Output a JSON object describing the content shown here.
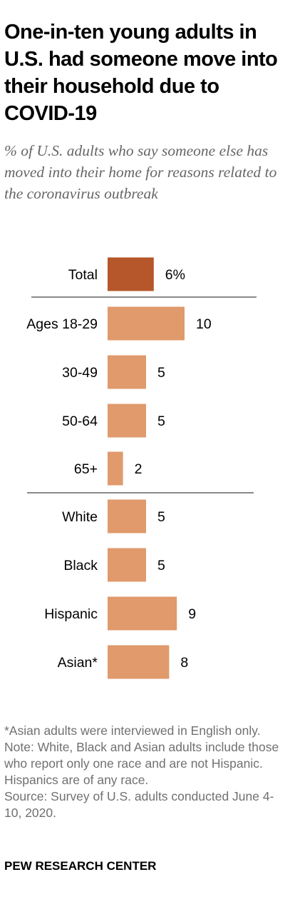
{
  "title": "One-in-ten young adults in U.S. had someone move into their household due to COVID-19",
  "subtitle": "% of U.S. adults who say someone else has moved into their home for reasons related to the coronavirus outbreak",
  "chart_data": {
    "type": "bar",
    "orientation": "horizontal",
    "categories": [
      "Total",
      "Ages 18-29",
      "30-49",
      "50-64",
      "65+",
      "White",
      "Black",
      "Hispanic",
      "Asian*"
    ],
    "values": [
      6,
      10,
      5,
      5,
      2,
      5,
      5,
      9,
      8
    ],
    "value_labels": [
      "6%",
      "10",
      "5",
      "5",
      "2",
      "5",
      "5",
      "9",
      "8"
    ],
    "groups": [
      {
        "name": "",
        "categories": [
          "Total"
        ]
      },
      {
        "name": "",
        "categories": [
          "Ages 18-29",
          "30-49",
          "50-64",
          "65+"
        ]
      },
      {
        "name": "",
        "categories": [
          "White",
          "Black",
          "Hispanic",
          "Asian*"
        ]
      }
    ],
    "colors": {
      "total": "#b5572a",
      "default": "#e09a6c",
      "separator": "#8a8a8a"
    },
    "xlim": [
      0,
      10
    ],
    "grid": false,
    "legend": "none"
  },
  "notes": [
    "*Asian adults were interviewed in English only.",
    "Note: White, Black and Asian adults include those who report only one race and are not Hispanic. Hispanics are of any race.",
    "Source: Survey of U.S. adults conducted June 4-10, 2020."
  ],
  "source_logo": "PEW RESEARCH CENTER"
}
